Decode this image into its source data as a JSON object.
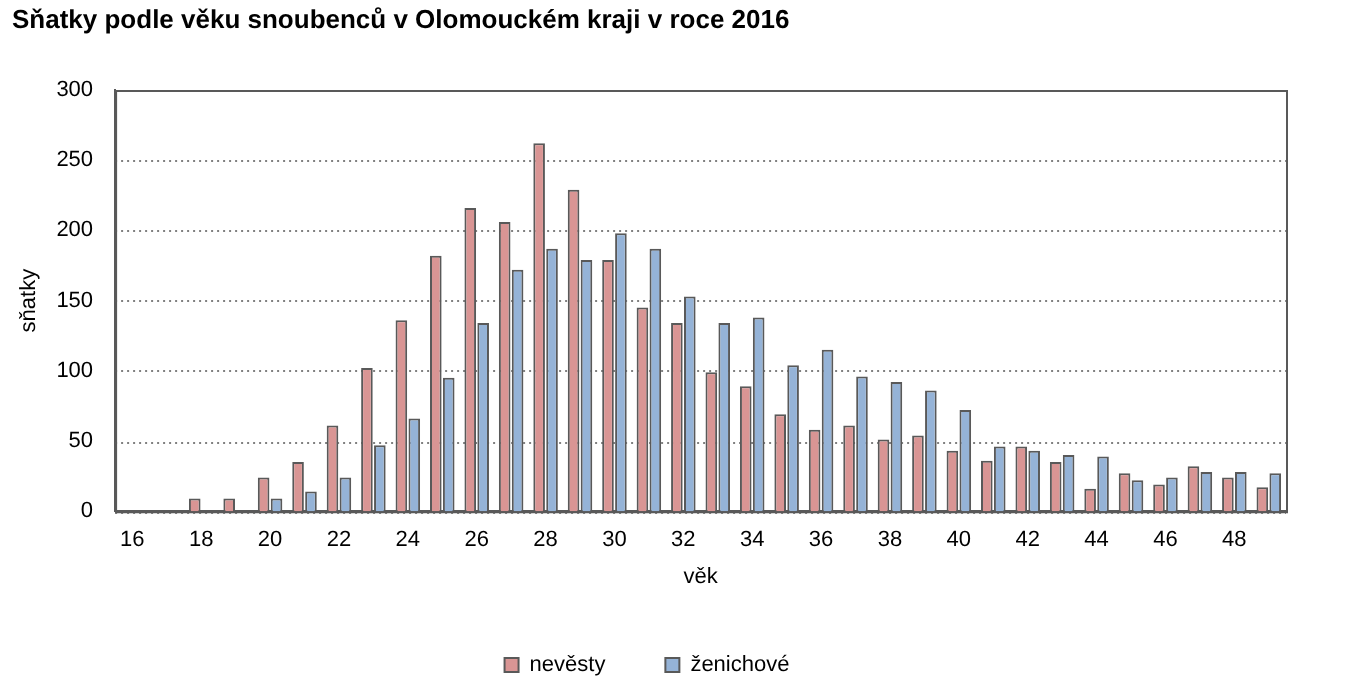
{
  "chart_data": {
    "type": "bar",
    "title": "Sňatky podle věku snoubenců v Olomouckém kraji v roce 2016",
    "xlabel": "věk",
    "ylabel": "sňatky",
    "categories": [
      "16",
      null,
      "18",
      null,
      "20",
      null,
      "22",
      null,
      "24",
      null,
      "26",
      null,
      "28",
      null,
      "30",
      null,
      "32",
      null,
      "34",
      null,
      "36",
      null,
      "38",
      null,
      "40",
      null,
      "42",
      null,
      "44",
      null,
      "46",
      null,
      "48",
      null
    ],
    "series": [
      {
        "name": "nevěsty",
        "color": "#d99594",
        "values": [
          null,
          0,
          9,
          9,
          24,
          35,
          61,
          102,
          136,
          182,
          216,
          206,
          262,
          229,
          179,
          145,
          134,
          99,
          89,
          69,
          58,
          61,
          51,
          54,
          43,
          36,
          46,
          35,
          16,
          27,
          19,
          32,
          24,
          17
        ]
      },
      {
        "name": "ženichové",
        "color": "#95b3d7",
        "values": [
          0,
          0,
          null,
          0,
          9,
          14,
          24,
          47,
          66,
          95,
          134,
          172,
          187,
          179,
          198,
          187,
          153,
          134,
          138,
          104,
          115,
          96,
          92,
          86,
          72,
          46,
          43,
          40,
          39,
          22,
          24,
          28,
          28,
          27
        ]
      }
    ],
    "ylim": [
      0,
      300
    ],
    "yticks": [
      0,
      50,
      100,
      150,
      200,
      250,
      300
    ],
    "grid": "y",
    "legend": "bottom"
  }
}
